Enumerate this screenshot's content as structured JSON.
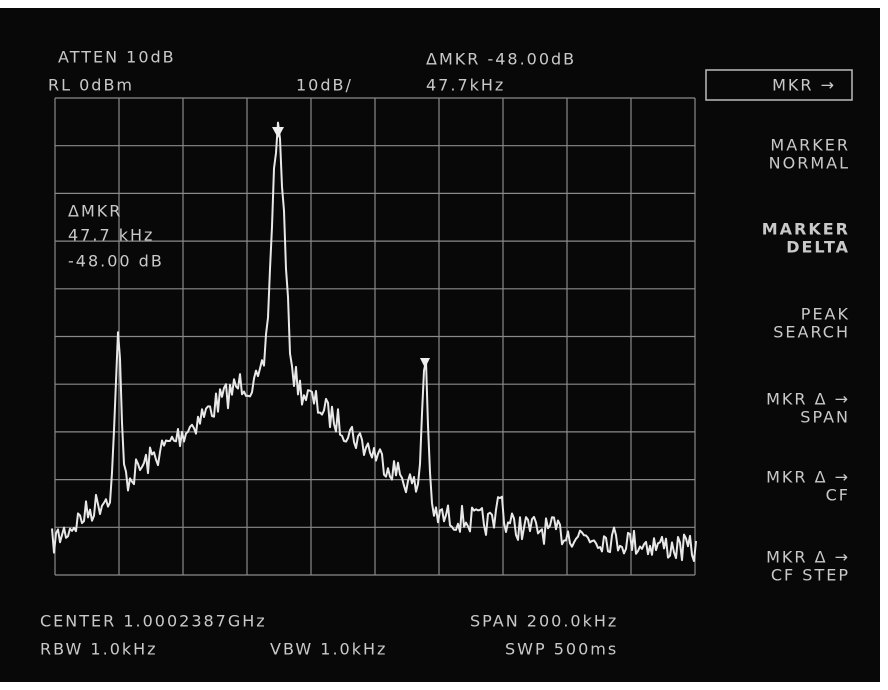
{
  "header": {
    "atten": "ATTEN 10dB",
    "ref_level": "RL 0dBm",
    "scale": "10dB/",
    "delta_marker": "ΔMKR -48.00dB",
    "delta_frequency": "47.7kHz"
  },
  "marker_readout": [
    "ΔMKR",
    "47.7 kHz",
    "-48.00 dB"
  ],
  "softkeys": [
    [
      "MKR →"
    ],
    [
      "MARKER",
      "NORMAL"
    ],
    [
      "MARKER",
      "DELTA"
    ],
    [
      "PEAK",
      "SEARCH"
    ],
    [
      "MKR Δ →",
      "SPAN"
    ],
    [
      "MKR Δ →",
      "CF"
    ],
    [
      "MKR Δ →",
      "CF STEP"
    ]
  ],
  "footer": {
    "center": "CENTER 1.0002387GHz",
    "span": "SPAN 200.0kHz",
    "rbw": "RBW 1.0kHz",
    "vbw": "VBW 1.0kHz",
    "sweep": "SWP 500ms"
  }
}
